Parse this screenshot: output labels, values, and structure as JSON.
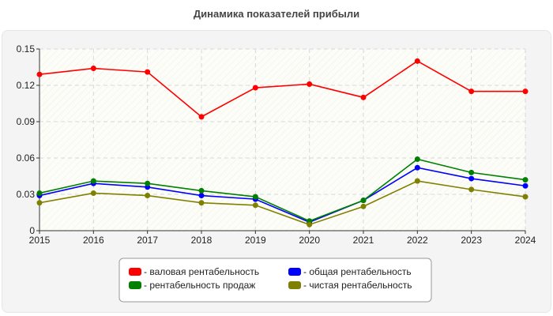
{
  "chart_data": {
    "type": "line",
    "title": "Динамика показателей прибыли",
    "x": [
      2015,
      2016,
      2017,
      2018,
      2019,
      2020,
      2021,
      2022,
      2023,
      2024
    ],
    "ylim": [
      0,
      0.15
    ],
    "yticks": [
      0,
      0.03,
      0.06,
      0.09,
      0.12,
      0.15
    ],
    "ytick_labels": [
      "0",
      "0.03",
      "0.06",
      "0.09",
      "0.12",
      "0.15"
    ],
    "grid": true,
    "legend_placement": "bottom",
    "series": [
      {
        "name": "- валовая рентабельность",
        "color": "#ff0000",
        "values": [
          0.129,
          0.134,
          0.131,
          0.094,
          0.118,
          0.121,
          0.11,
          0.14,
          0.115,
          0.115
        ]
      },
      {
        "name": "- общая рентабельность",
        "color": "#0000ff",
        "values": [
          0.029,
          0.039,
          0.036,
          0.029,
          0.026,
          0.007,
          0.025,
          0.052,
          0.043,
          0.037
        ]
      },
      {
        "name": "- рентабельность продаж",
        "color": "#008000",
        "values": [
          0.031,
          0.041,
          0.039,
          0.033,
          0.028,
          0.008,
          0.025,
          0.059,
          0.048,
          0.042
        ]
      },
      {
        "name": "- чистая рентабельность",
        "color": "#808000",
        "values": [
          0.023,
          0.031,
          0.029,
          0.023,
          0.021,
          0.005,
          0.02,
          0.041,
          0.034,
          0.028
        ]
      }
    ]
  }
}
